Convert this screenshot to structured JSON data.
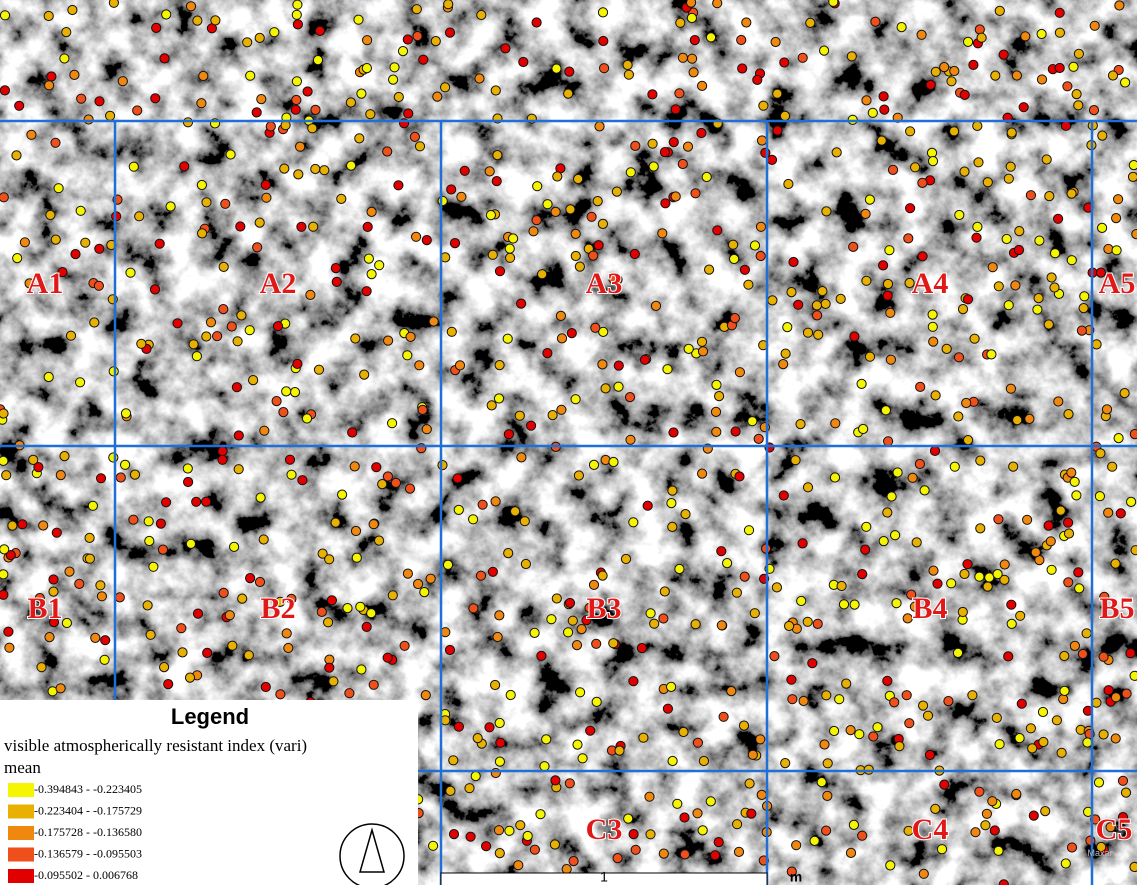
{
  "map": {
    "grid_labels": [
      "A1",
      "A2",
      "A3",
      "A4",
      "A5",
      "B1",
      "B2",
      "B3",
      "B4",
      "B5",
      "C3",
      "C4",
      "C5"
    ],
    "legend": {
      "title": "Legend",
      "layer": "visible atmospherically resistant index (vari)",
      "field": "mean",
      "classes": [
        {
          "label": "-0.394843 - -0.223405",
          "color": "#f5f500"
        },
        {
          "label": "-0.223404 - -0.175729",
          "color": "#e8b000"
        },
        {
          "label": "-0.175728 - -0.136580",
          "color": "#f0880f"
        },
        {
          "label": "-0.136579 - -0.095503",
          "color": "#ef4f1a"
        },
        {
          "label": "-0.095502 - 0.006768",
          "color": "#e00000"
        }
      ]
    },
    "scale_bar": {
      "label": "1",
      "unit": "m"
    },
    "attribution": "Maxar"
  }
}
